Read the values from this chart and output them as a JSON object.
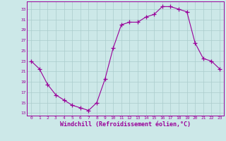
{
  "x": [
    0,
    1,
    2,
    3,
    4,
    5,
    6,
    7,
    8,
    9,
    10,
    11,
    12,
    13,
    14,
    15,
    16,
    17,
    18,
    19,
    20,
    21,
    22,
    23
  ],
  "y": [
    23,
    21.5,
    18.5,
    16.5,
    15.5,
    14.5,
    14,
    13.5,
    15,
    19.5,
    25.5,
    30,
    30.5,
    30.5,
    31.5,
    32,
    33.5,
    33.5,
    33,
    32.5,
    26.5,
    23.5,
    23,
    21.5
  ],
  "line_color": "#990099",
  "marker": "+",
  "marker_size": 4,
  "bg_color": "#cce8e8",
  "grid_color": "#aacccc",
  "axis_color": "#990099",
  "tick_color": "#990099",
  "xlabel": "Windchill (Refroidissement éolien,°C)",
  "xlabel_fontsize": 6.0,
  "yticks": [
    13,
    15,
    17,
    19,
    21,
    23,
    25,
    27,
    29,
    31,
    33
  ],
  "xticks": [
    0,
    1,
    2,
    3,
    4,
    5,
    6,
    7,
    8,
    9,
    10,
    11,
    12,
    13,
    14,
    15,
    16,
    17,
    18,
    19,
    20,
    21,
    22,
    23
  ],
  "ylim": [
    12.5,
    34.5
  ],
  "xlim": [
    -0.5,
    23.5
  ]
}
